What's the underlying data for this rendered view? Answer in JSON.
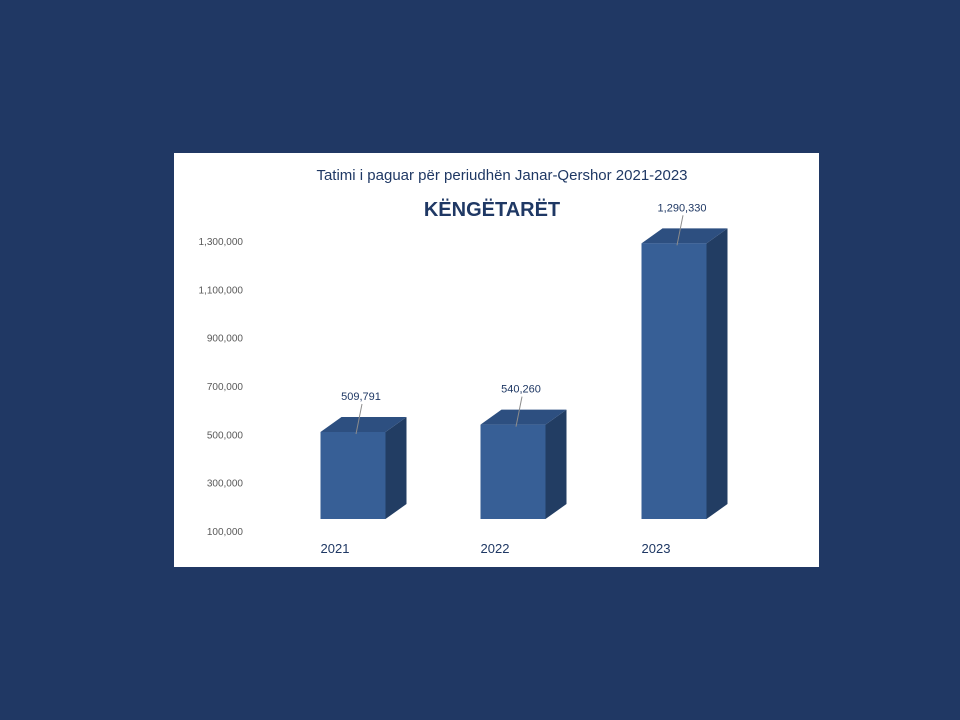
{
  "colors": {
    "slide_background": "#203864",
    "panel_background": "#ffffff",
    "bar_front": "#375f96",
    "bar_top": "#2d4f80",
    "bar_side": "#223d63",
    "title_text": "#1f3864",
    "axis_text": "#595959",
    "leader_line": "#8c8c8c"
  },
  "chart_data": {
    "type": "bar",
    "style": "3d-column",
    "title": "Tatimi i paguar për periudhën Janar-Qershor 2021-2023",
    "subtitle": "KËNGËTARËT",
    "categories": [
      "2021",
      "2022",
      "2023"
    ],
    "values": [
      509791,
      540260,
      1290330
    ],
    "data_labels": [
      "509,791",
      "540,260",
      "1,290,330"
    ],
    "yticks": [
      100000,
      300000,
      500000,
      700000,
      900000,
      1100000,
      1300000
    ],
    "ytick_labels": [
      "100,000",
      "300,000",
      "500,000",
      "700,000",
      "900,000",
      "1,100,000",
      "1,300,000"
    ],
    "ylim": [
      100000,
      1300000
    ],
    "grid": false,
    "legend": "none"
  }
}
